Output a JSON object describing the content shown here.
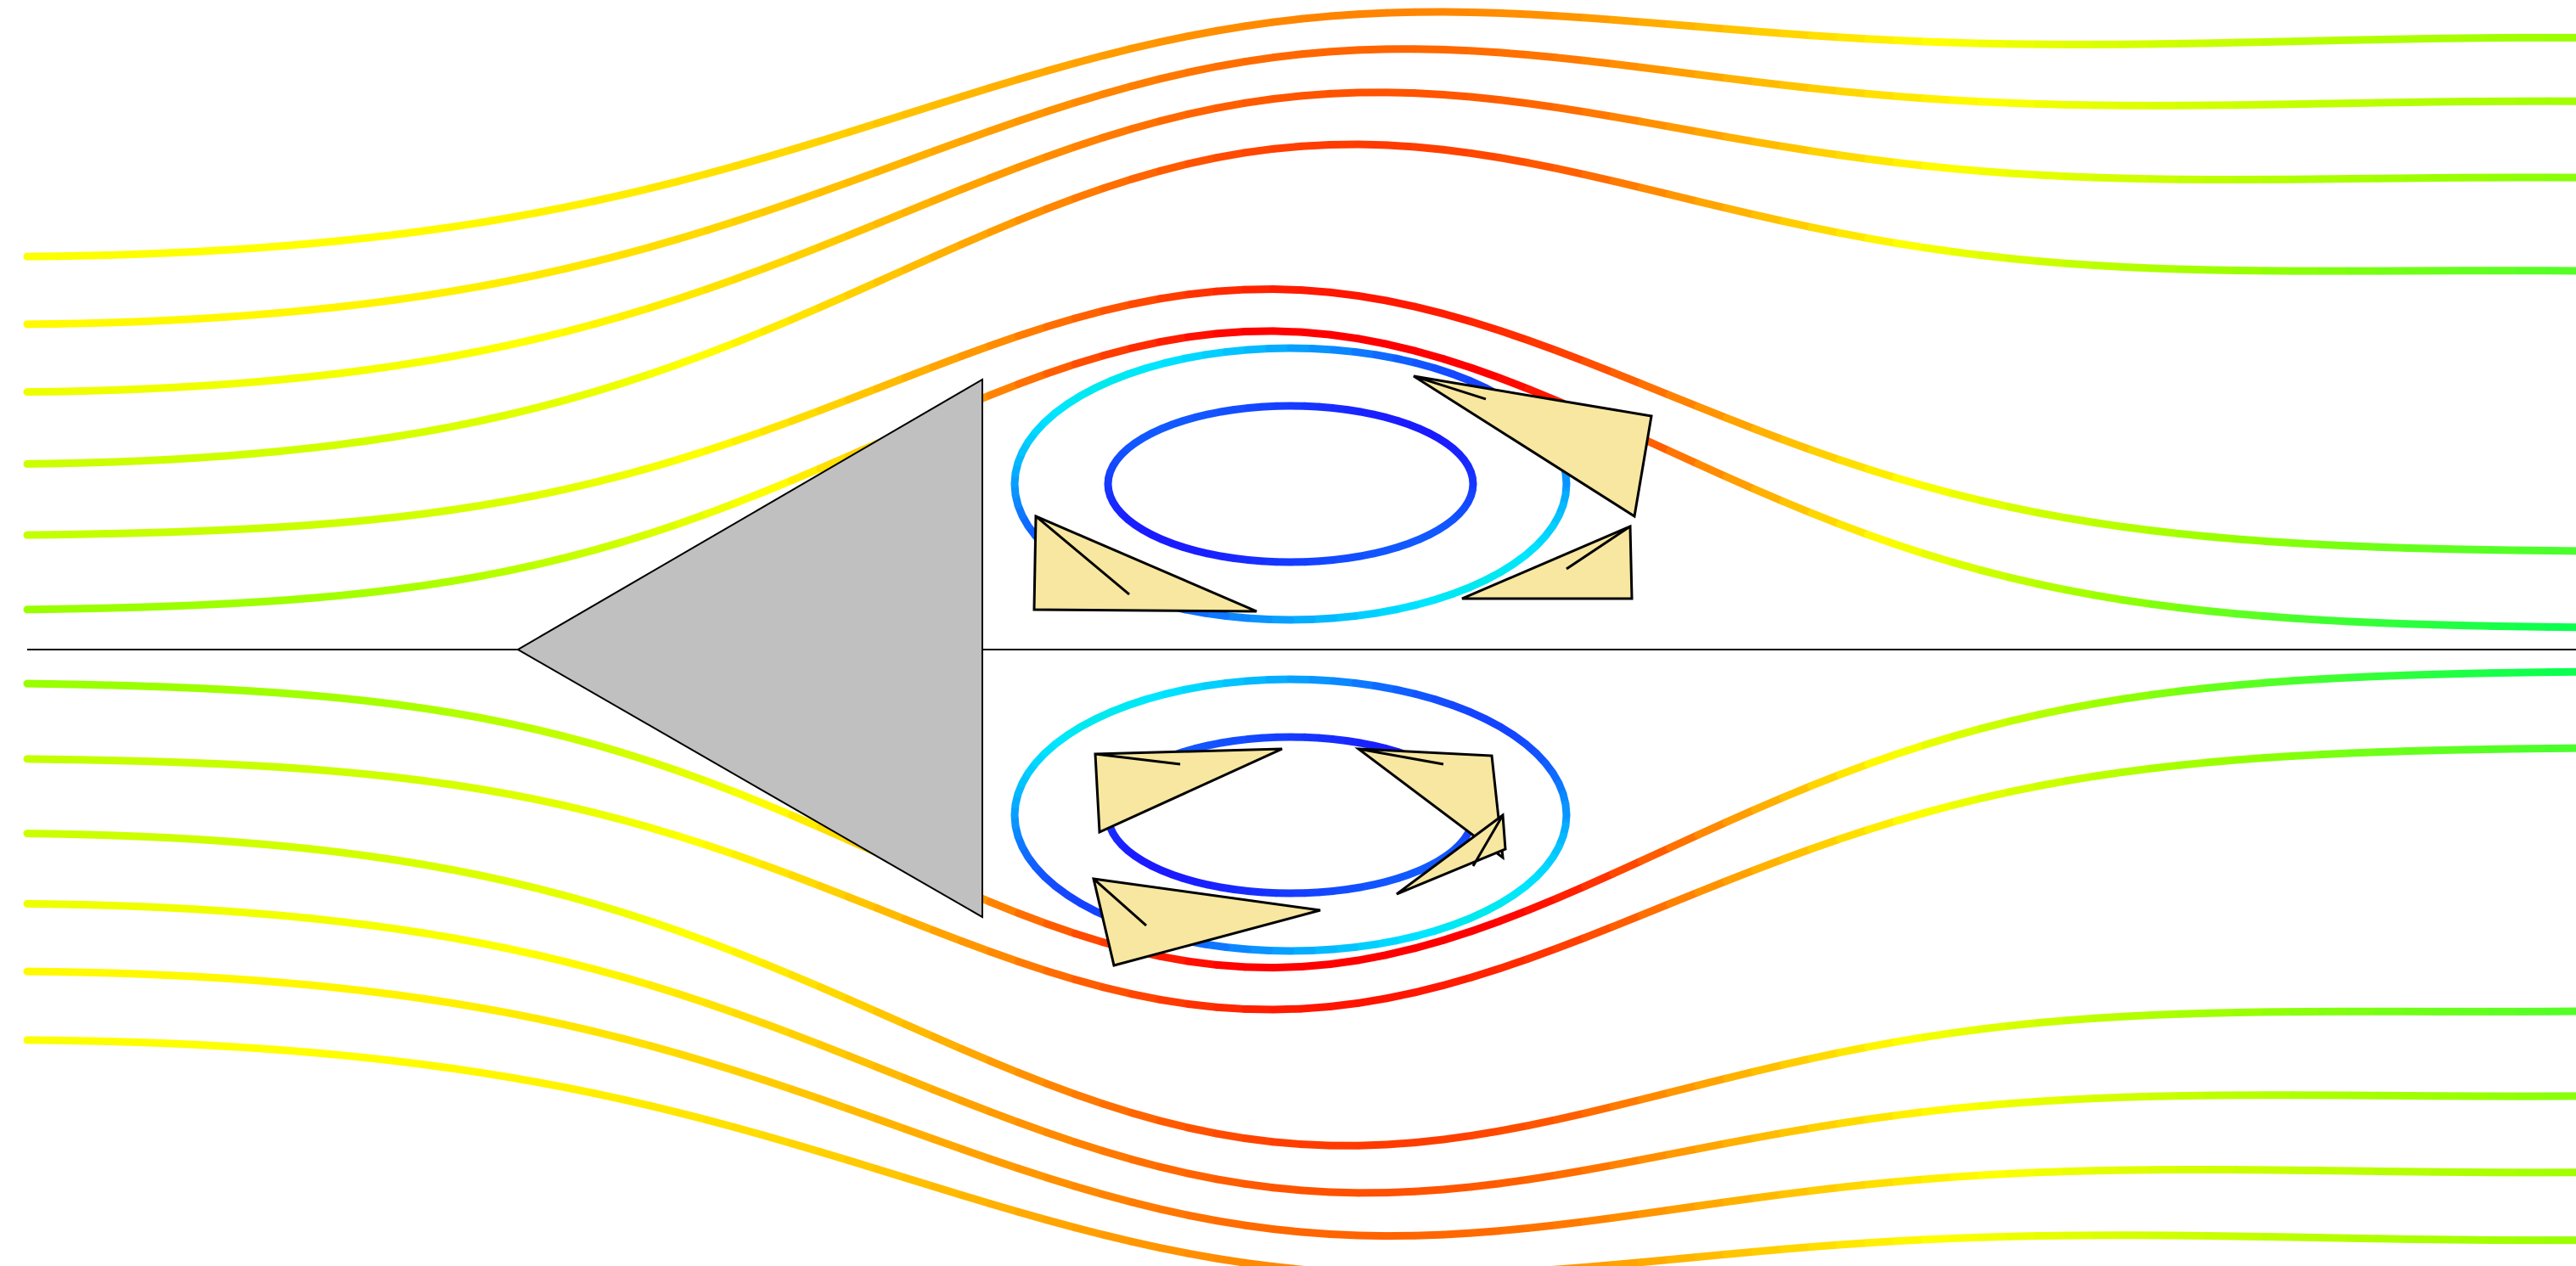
{
  "figure": {
    "subject": "",
    "color_scale": {
      "ramp": [
        "#1a1aff",
        "#0a8cff",
        "#00e6ff",
        "#00ff55",
        "#99ff00",
        "#ffff00",
        "#ff8c00",
        "#ff0000"
      ]
    },
    "obstacle": {
      "shape": "triangle",
      "fill": "#c0c0c0"
    },
    "vortices": {
      "count": 2,
      "arrow_fill": "#f7e7a0"
    }
  }
}
